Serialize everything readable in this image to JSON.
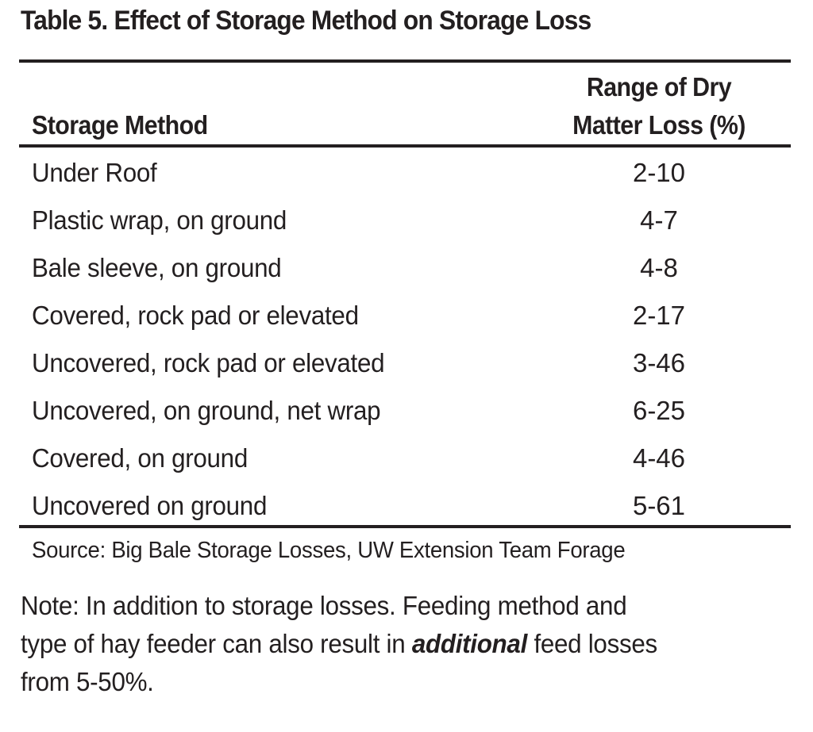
{
  "title": "Table 5.  Effect of Storage Method on Storage Loss",
  "table": {
    "headers": {
      "method": "Storage Method",
      "range_line1": "Range of Dry",
      "range_line2": "Matter Loss (%)"
    },
    "rows": [
      {
        "method": "Under Roof",
        "range": "2-10"
      },
      {
        "method": "Plastic wrap, on ground",
        "range": "4-7"
      },
      {
        "method": "Bale sleeve, on ground",
        "range": "4-8"
      },
      {
        "method": "Covered, rock pad or elevated",
        "range": "2-17"
      },
      {
        "method": "Uncovered, rock pad or elevated",
        "range": "3-46"
      },
      {
        "method": "Uncovered, on ground, net wrap",
        "range": "6-25"
      },
      {
        "method": "Covered, on ground",
        "range": "4-46"
      },
      {
        "method": "Uncovered on ground",
        "range": "5-61"
      }
    ]
  },
  "source": "Source:  Big Bale Storage Losses, UW Extension Team Forage",
  "note": {
    "line1": "Note:  In addition to storage losses. Feeding method and",
    "line2_before": "type of hay feeder can also result in ",
    "line2_emphasis": "additional",
    "line2_after": " feed losses",
    "line3": "from 5-50%."
  }
}
